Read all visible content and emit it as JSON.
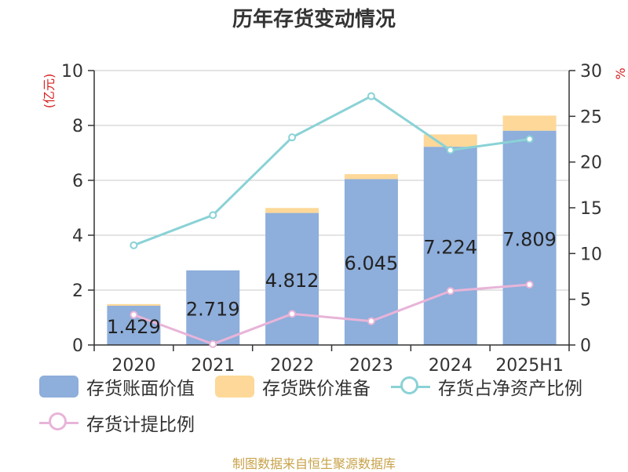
{
  "chart_data": {
    "type": "bar",
    "title": "历年存货变动情况",
    "categories": [
      "2020",
      "2021",
      "2022",
      "2023",
      "2024",
      "2025H1"
    ],
    "left_axis": {
      "label": "(亿元)",
      "range": [
        0,
        10
      ],
      "ticks": [
        "0",
        "2",
        "4",
        "6",
        "8",
        "10"
      ]
    },
    "right_axis": {
      "label": "%",
      "range": [
        0,
        30
      ],
      "ticks": [
        "0",
        "5",
        "10",
        "15",
        "20",
        "25",
        "30"
      ]
    },
    "stacked": true,
    "series": [
      {
        "name": "存货账面价值",
        "type": "bar",
        "axis": "left",
        "color": "#8eaedb",
        "values": [
          1.429,
          2.719,
          4.812,
          6.045,
          7.224,
          7.809
        ],
        "labels": [
          "1.429",
          "2.719",
          "4.812",
          "6.045",
          "7.224",
          "7.809"
        ]
      },
      {
        "name": "存货跌价准备",
        "type": "bar",
        "axis": "left",
        "color": "#fdd898",
        "values": [
          0.06,
          0.0,
          0.18,
          0.18,
          0.45,
          0.55
        ]
      },
      {
        "name": "存货占净资产比例",
        "type": "line",
        "axis": "right",
        "color": "#8ad2d6",
        "values": [
          10.9,
          14.2,
          22.7,
          27.2,
          21.3,
          22.5
        ]
      },
      {
        "name": "存货计提比例",
        "type": "line",
        "axis": "right",
        "color": "#e8b4d8",
        "values": [
          3.3,
          0.1,
          3.4,
          2.6,
          5.9,
          6.6
        ]
      }
    ],
    "grid": true,
    "legend_position": "bottom"
  },
  "footer": {
    "source": "制图数据来自恒生聚源数据库"
  }
}
